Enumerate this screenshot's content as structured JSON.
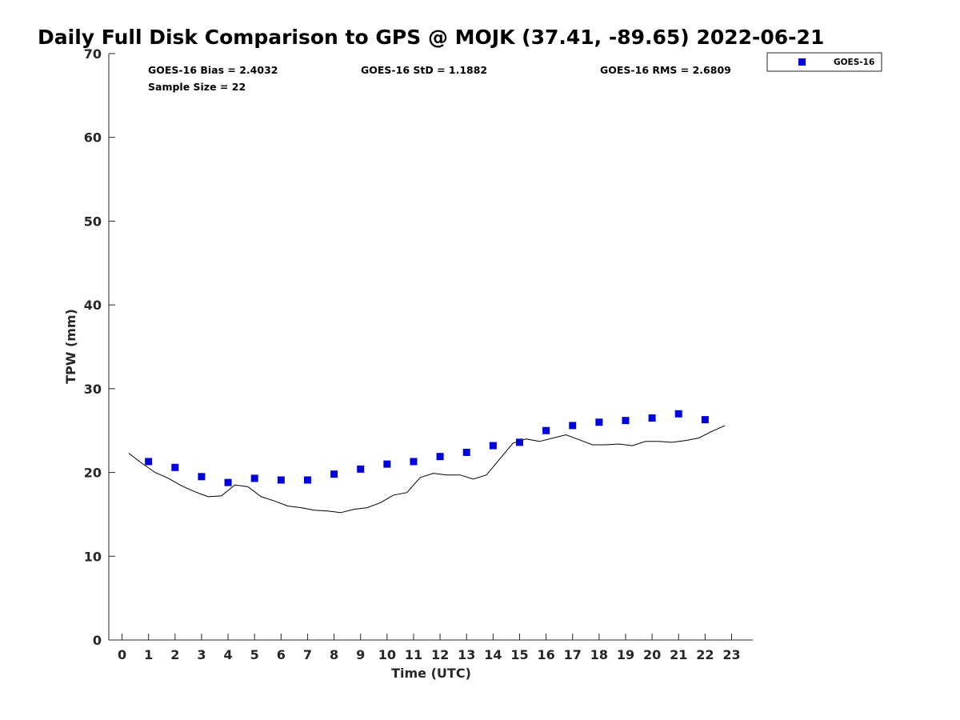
{
  "chart_data": {
    "type": "scatter",
    "title": "Daily Full Disk Comparison to GPS @ MOJK (37.41, -89.65) 2022-06-21",
    "xlabel": "Time (UTC)",
    "ylabel": "TPW (mm)",
    "xlim": [
      -0.5,
      23.8
    ],
    "ylim": [
      0,
      70
    ],
    "xticks": [
      0,
      1,
      2,
      3,
      4,
      5,
      6,
      7,
      8,
      9,
      10,
      11,
      12,
      13,
      14,
      15,
      16,
      17,
      18,
      19,
      20,
      21,
      22,
      23
    ],
    "yticks": [
      0,
      10,
      20,
      30,
      40,
      50,
      60,
      70
    ],
    "grid": false,
    "legend_position": "top-right, outside plot",
    "stats": {
      "bias": "GOES-16 Bias = 2.4032",
      "std": "GOES-16 StD = 1.1882",
      "rms": "GOES-16 RMS = 2.6809",
      "sample_size": "Sample Size = 22"
    },
    "series": [
      {
        "name": "GOES-16",
        "kind": "scatter",
        "marker": "square",
        "color": "#0000dd",
        "points": [
          [
            1,
            21.3
          ],
          [
            2,
            20.6
          ],
          [
            3,
            19.5
          ],
          [
            4,
            18.8
          ],
          [
            5,
            19.3
          ],
          [
            6,
            19.1
          ],
          [
            7,
            19.1
          ],
          [
            8,
            19.8
          ],
          [
            9,
            20.4
          ],
          [
            10,
            21.0
          ],
          [
            11,
            21.3
          ],
          [
            12,
            21.9
          ],
          [
            13,
            22.4
          ],
          [
            14,
            23.2
          ],
          [
            15,
            23.6
          ],
          [
            16,
            25.0
          ],
          [
            17,
            25.6
          ],
          [
            18,
            26.0
          ],
          [
            19,
            26.2
          ],
          [
            20,
            26.5
          ],
          [
            21,
            27.0
          ],
          [
            22,
            26.3
          ]
        ]
      },
      {
        "kind": "line",
        "color": "#000000",
        "points": [
          [
            0.25,
            22.3
          ],
          [
            0.75,
            21.1
          ],
          [
            1.25,
            20.0
          ],
          [
            1.75,
            19.3
          ],
          [
            2.25,
            18.4
          ],
          [
            2.75,
            17.7
          ],
          [
            3.25,
            17.1
          ],
          [
            3.75,
            17.2
          ],
          [
            4.25,
            18.5
          ],
          [
            4.75,
            18.3
          ],
          [
            5.25,
            17.1
          ],
          [
            5.75,
            16.6
          ],
          [
            6.25,
            16.0
          ],
          [
            6.75,
            15.8
          ],
          [
            7.25,
            15.5
          ],
          [
            7.75,
            15.4
          ],
          [
            8.25,
            15.2
          ],
          [
            8.75,
            15.6
          ],
          [
            9.25,
            15.8
          ],
          [
            9.75,
            16.4
          ],
          [
            10.25,
            17.3
          ],
          [
            10.75,
            17.6
          ],
          [
            11.25,
            19.4
          ],
          [
            11.75,
            19.9
          ],
          [
            12.25,
            19.7
          ],
          [
            12.75,
            19.7
          ],
          [
            13.25,
            19.2
          ],
          [
            13.75,
            19.7
          ],
          [
            14.25,
            21.6
          ],
          [
            14.75,
            23.5
          ],
          [
            15.25,
            24.0
          ],
          [
            15.75,
            23.7
          ],
          [
            16.25,
            24.1
          ],
          [
            16.75,
            24.5
          ],
          [
            17.25,
            23.9
          ],
          [
            17.75,
            23.3
          ],
          [
            18.25,
            23.3
          ],
          [
            18.75,
            23.4
          ],
          [
            19.25,
            23.2
          ],
          [
            19.75,
            23.7
          ],
          [
            20.25,
            23.7
          ],
          [
            20.75,
            23.6
          ],
          [
            21.25,
            23.8
          ],
          [
            21.75,
            24.1
          ],
          [
            22.25,
            24.9
          ],
          [
            22.75,
            25.6
          ]
        ]
      }
    ]
  }
}
